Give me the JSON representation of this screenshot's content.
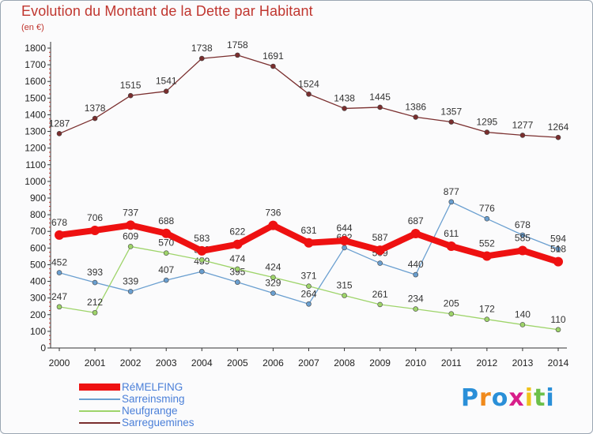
{
  "chart_data": {
    "type": "line",
    "title": "Evolution du Montant de la Dette par Habitant",
    "subtitle": "(en €)",
    "x": [
      "2000",
      "2001",
      "2002",
      "2003",
      "2004",
      "2005",
      "2006",
      "2007",
      "2008",
      "2009",
      "2010",
      "2011",
      "2012",
      "2013",
      "2014"
    ],
    "ylim": [
      0,
      1800
    ],
    "yticks": [
      0,
      100,
      200,
      300,
      400,
      500,
      600,
      700,
      800,
      900,
      1000,
      1100,
      1200,
      1300,
      1400,
      1500,
      1600,
      1700,
      1800
    ],
    "grid": false,
    "legend_position": "bottom-left",
    "series": [
      {
        "name": "Sarreguemines",
        "color": "#7a2e2e",
        "values": [
          1287,
          1378,
          1515,
          1541,
          1738,
          1758,
          1691,
          1524,
          1438,
          1445,
          1386,
          1357,
          1295,
          1277,
          1264
        ]
      },
      {
        "name": "Sarreinsming",
        "color": "#6a9fd0",
        "values": [
          452,
          393,
          339,
          407,
          459,
          395,
          329,
          264,
          602,
          509,
          440,
          877,
          776,
          678,
          594
        ]
      },
      {
        "name": "Neufgrange",
        "color": "#9ed46a",
        "values": [
          247,
          212,
          609,
          570,
          528,
          474,
          424,
          371,
          315,
          261,
          234,
          205,
          172,
          140,
          110
        ]
      },
      {
        "name": "RéMELFING",
        "color": "#ee1111",
        "values": [
          678,
          706,
          737,
          688,
          583,
          622,
          736,
          631,
          644,
          587,
          687,
          611,
          552,
          585,
          518
        ]
      }
    ]
  },
  "brand": {
    "letters": [
      "P",
      "r",
      "o",
      "x",
      "i",
      "t",
      "i"
    ],
    "colors": [
      "#2a8fd8",
      "#f08a1c",
      "#2a8fd8",
      "#d81e8a",
      "#f0c21c",
      "#6cc04a",
      "#2a8fd8"
    ]
  }
}
